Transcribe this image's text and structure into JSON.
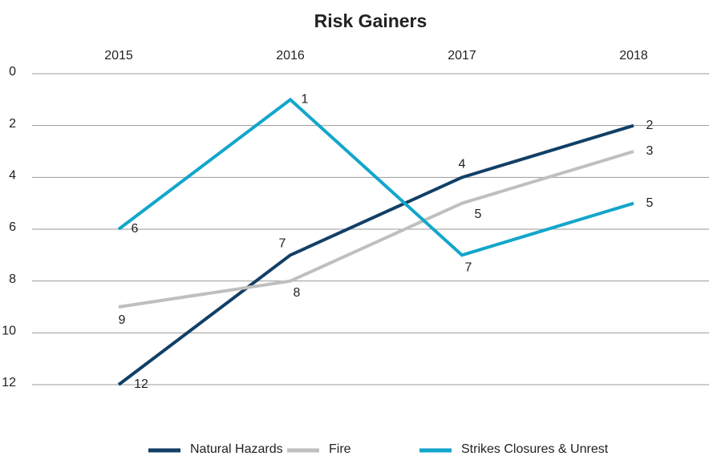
{
  "chart_data": {
    "type": "line",
    "title": "Risk Gainers",
    "categories": [
      "2015",
      "2016",
      "2017",
      "2018"
    ],
    "series": [
      {
        "name": "Natural Hazards",
        "color": "#123f66",
        "values": [
          12,
          7,
          4,
          2
        ]
      },
      {
        "name": "Fire",
        "color": "#bfbfbf",
        "values": [
          9,
          8,
          5,
          3
        ]
      },
      {
        "name": "Strikes Closures & Unrest",
        "color": "#13a6cb",
        "values": [
          6,
          1,
          7,
          5
        ]
      }
    ],
    "ylim": [
      0,
      12
    ],
    "yticks": [
      0,
      2,
      4,
      6,
      8,
      10,
      12
    ],
    "y_reversed": true,
    "grid": true,
    "legend": "bottom",
    "data_labels": true
  }
}
